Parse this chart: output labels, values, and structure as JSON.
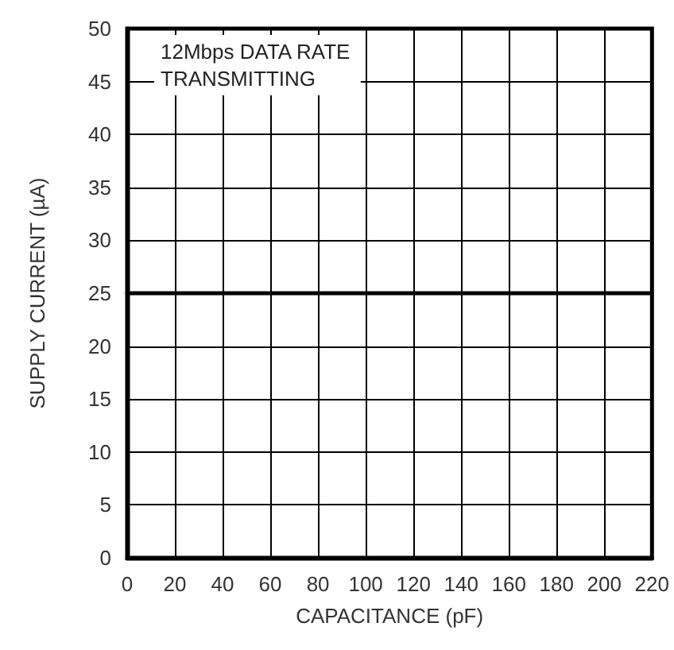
{
  "chart_data": {
    "type": "line",
    "xlabel": "CAPACITANCE (pF)",
    "ylabel": "SUPPLY CURRENT (µA)",
    "annotations": [
      "12Mbps DATA RATE\nTRANSMITTING"
    ],
    "x": [
      0,
      220
    ],
    "series": [
      {
        "color": "#000000",
        "values": [
          25,
          25
        ]
      }
    ],
    "xlim": [
      0,
      220
    ],
    "xticks": [
      0,
      20,
      40,
      60,
      80,
      100,
      120,
      140,
      160,
      180,
      200,
      220
    ],
    "ylim": [
      0,
      50
    ],
    "yticks": [
      0,
      5,
      10,
      15,
      20,
      25,
      30,
      35,
      40,
      45,
      50
    ],
    "grid": true,
    "marker": "none",
    "line_style": "solid"
  }
}
